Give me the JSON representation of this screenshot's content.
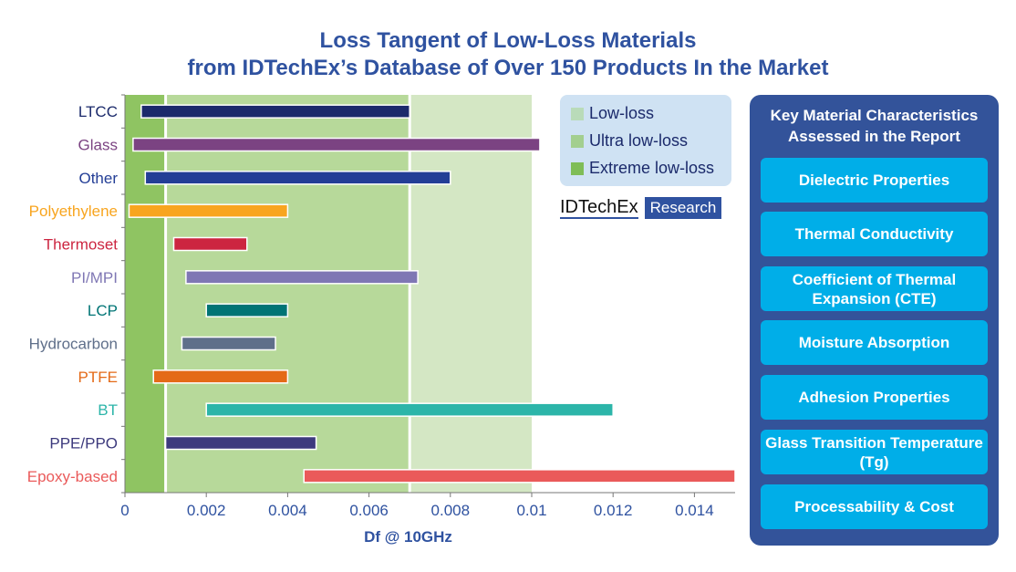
{
  "title_line1": "Loss Tangent of Low-Loss Materials",
  "title_line2": "from IDTechEx’s Database of Over 150 Products In the Market",
  "chart_data": {
    "type": "bar",
    "orientation": "horizontal-range",
    "xlabel": "Df @ 10GHz",
    "xlim": [
      0,
      0.015
    ],
    "xticks": [
      "0",
      "0.002",
      "0.004",
      "0.006",
      "0.008",
      "0.01",
      "0.012",
      "0.014"
    ],
    "categories": [
      "LTCC",
      "Glass",
      "Other",
      "Polyethylene",
      "Thermoset",
      "PI/MPI",
      "LCP",
      "Hydrocarbon",
      "PTFE",
      "BT",
      "PPE/PPO",
      "Epoxy-based"
    ],
    "ranges": [
      [
        0.0004,
        0.007
      ],
      [
        0.0002,
        0.0102
      ],
      [
        0.0005,
        0.008
      ],
      [
        0.0001,
        0.004
      ],
      [
        0.0012,
        0.003
      ],
      [
        0.0015,
        0.0072
      ],
      [
        0.002,
        0.004
      ],
      [
        0.0014,
        0.0037
      ],
      [
        0.0007,
        0.004
      ],
      [
        0.002,
        0.012
      ],
      [
        0.001,
        0.0047
      ],
      [
        0.0044,
        0.015
      ]
    ],
    "colors": [
      "#1b2a6b",
      "#7b4382",
      "#233e96",
      "#f8a51f",
      "#cc2540",
      "#7f77b4",
      "#007475",
      "#5f6f8a",
      "#e46a17",
      "#2cb5a9",
      "#3d3a7d",
      "#ea5a5a"
    ],
    "zones": [
      {
        "name": "Extreme low-loss",
        "from": 0,
        "to": 0.001,
        "color": "#8fc462"
      },
      {
        "name": "Ultra low-loss",
        "from": 0.001,
        "to": 0.007,
        "color": "#b7d99a"
      },
      {
        "name": "Low-loss",
        "from": 0.007,
        "to": 0.01,
        "color": "#d4e7c4"
      }
    ],
    "legend_placement": "top-right"
  },
  "legend": [
    {
      "label": "Low-loss",
      "color": "#b9dbb9"
    },
    {
      "label": "Ultra low-loss",
      "color": "#a3cf8f"
    },
    {
      "label": "Extreme low-loss",
      "color": "#7fbd57"
    }
  ],
  "logo": {
    "brand": "IDTechEx",
    "sub": "Research"
  },
  "panel": {
    "title": "Key Material Characteristics Assessed in the Report",
    "items": [
      "Dielectric Properties",
      "Thermal Conductivity",
      "Coefficient of Thermal Expansion (CTE)",
      "Moisture Absorption",
      "Adhesion Properties",
      "Glass Transition Temperature (Tg)",
      "Processability & Cost"
    ]
  }
}
